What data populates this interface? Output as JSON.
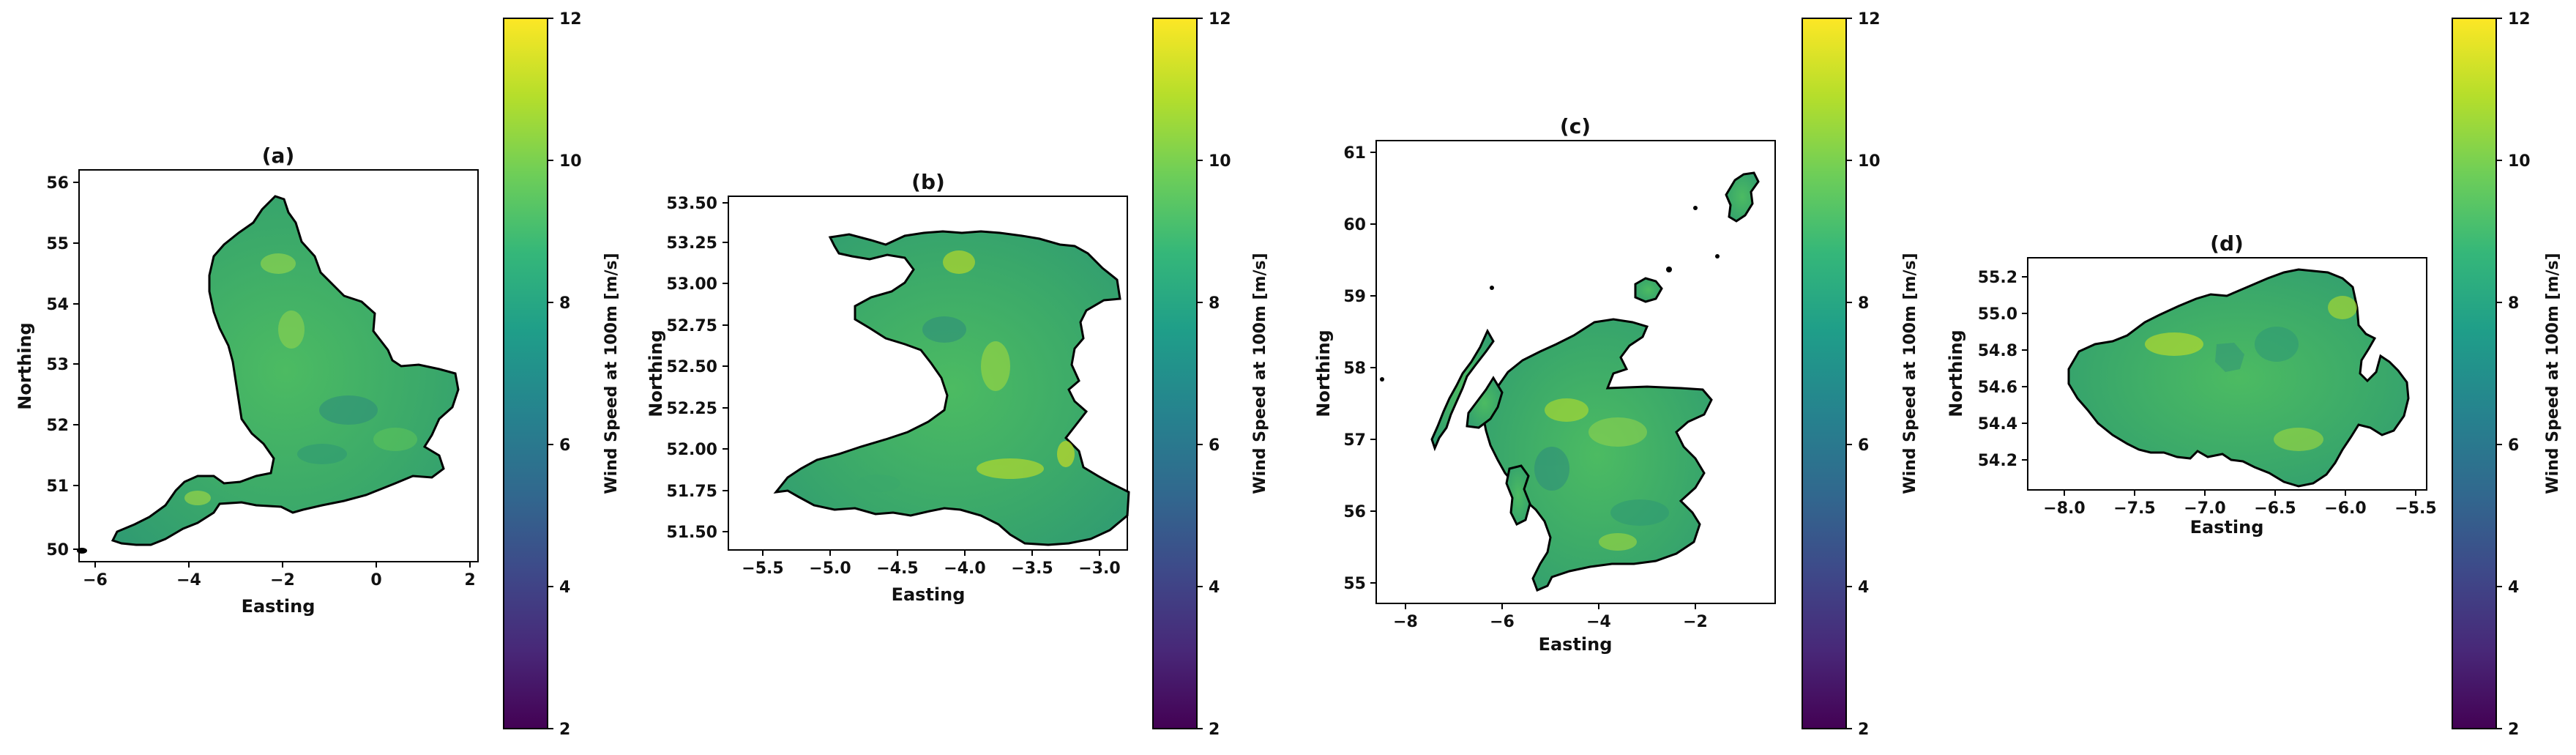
{
  "panels": [
    {
      "title": "(a)",
      "xlabel": "Easting",
      "ylabel": "Northing",
      "xticks": [
        "−6",
        "−4",
        "−2",
        "0",
        "2"
      ],
      "yticks": [
        "50",
        "51",
        "52",
        "53",
        "54",
        "55",
        "56"
      ],
      "colorbar": {
        "label": "Wind Speed at 100m [m/s]",
        "ticks": [
          "2",
          "4",
          "6",
          "8",
          "10",
          "12"
        ]
      }
    },
    {
      "title": "(b)",
      "xlabel": "Easting",
      "ylabel": "Northing",
      "xticks": [
        "−5.5",
        "−5.0",
        "−4.5",
        "−4.0",
        "−3.5",
        "−3.0"
      ],
      "yticks": [
        "51.50",
        "51.75",
        "52.00",
        "52.25",
        "52.50",
        "52.75",
        "53.00",
        "53.25",
        "53.50"
      ],
      "colorbar": {
        "label": "Wind Speed at 100m [m/s]",
        "ticks": [
          "2",
          "4",
          "6",
          "8",
          "10",
          "12"
        ]
      }
    },
    {
      "title": "(c)",
      "xlabel": "Easting",
      "ylabel": "Northing",
      "xticks": [
        "−8",
        "−6",
        "−4",
        "−2"
      ],
      "yticks": [
        "55",
        "56",
        "57",
        "58",
        "59",
        "60",
        "61"
      ],
      "colorbar": {
        "label": "Wind Speed at 100m [m/s]",
        "ticks": [
          "2",
          "4",
          "6",
          "8",
          "10",
          "12"
        ]
      }
    },
    {
      "title": "(d)",
      "xlabel": "Easting",
      "ylabel": "Northing",
      "xticks": [
        "−8.0",
        "−7.5",
        "−7.0",
        "−6.5",
        "−6.0",
        "−5.5"
      ],
      "yticks": [
        "54.2",
        "54.4",
        "54.6",
        "54.8",
        "55.0",
        "55.2"
      ],
      "colorbar": {
        "label": "Wind Speed at 100m [m/s]",
        "ticks": [
          "2",
          "4",
          "6",
          "8",
          "10",
          "12"
        ]
      }
    }
  ],
  "colors": {
    "land_base": "#3fae66",
    "coastline": "#000000",
    "viridis": [
      "#440154",
      "#482878",
      "#3e4989",
      "#31688e",
      "#26828e",
      "#1f9e89",
      "#35b779",
      "#6ece58",
      "#b5de2b",
      "#fde725"
    ]
  }
}
